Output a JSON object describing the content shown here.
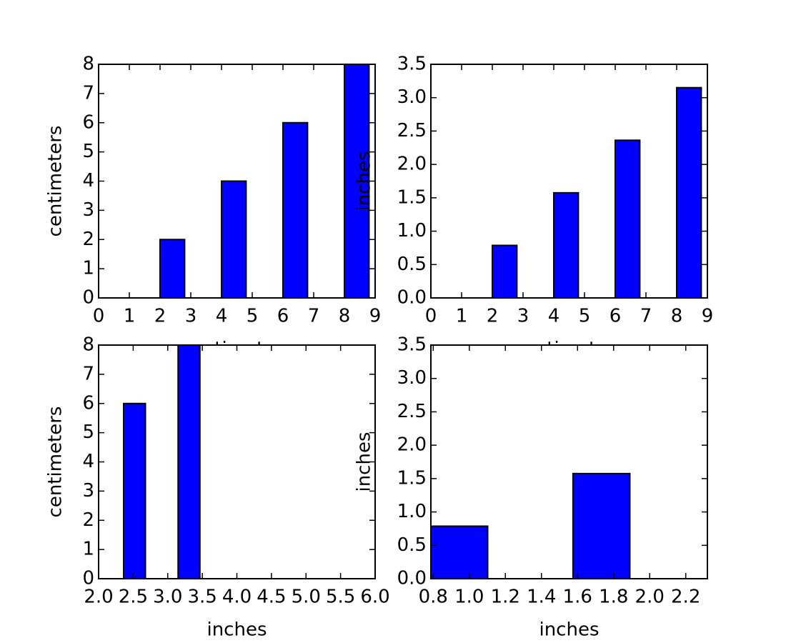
{
  "chart_data": [
    {
      "type": "bar",
      "x": [
        0,
        2,
        4,
        6,
        8
      ],
      "values": [
        0,
        2,
        4,
        6,
        8
      ],
      "xlim": [
        0,
        9
      ],
      "ylim": [
        0,
        8
      ],
      "xticks": [
        0,
        1,
        2,
        3,
        4,
        5,
        6,
        7,
        8,
        9
      ],
      "yticks": [
        0,
        1,
        2,
        3,
        4,
        5,
        6,
        7,
        8
      ],
      "xlabel": "centimeters",
      "ylabel": "centimeters",
      "color": "#0000ff"
    },
    {
      "type": "bar",
      "x": [
        0,
        2,
        4,
        6,
        8
      ],
      "values": [
        0,
        0.787,
        1.575,
        2.362,
        3.15
      ],
      "xlim": [
        0,
        9
      ],
      "ylim": [
        0,
        3.5
      ],
      "xticks": [
        0,
        1,
        2,
        3,
        4,
        5,
        6,
        7,
        8,
        9
      ],
      "yticks": [
        {
          "value": 0,
          "label": "0.0"
        },
        0.5,
        {
          "value": 1,
          "label": "1.0"
        },
        1.5,
        {
          "value": 2,
          "label": "2.0"
        },
        2.5,
        {
          "value": 3,
          "label": "3.0"
        },
        3.5
      ],
      "xlabel": "centimeters",
      "ylabel": "inches",
      "color": "#0000ff"
    },
    {
      "type": "bar",
      "x": [
        2.362,
        3.15
      ],
      "values": [
        6,
        8
      ],
      "xlim": [
        2,
        6
      ],
      "ylim": [
        0,
        8
      ],
      "xticks": [
        {
          "value": 2,
          "label": "2.0"
        },
        2.5,
        {
          "value": 3,
          "label": "3.0"
        },
        3.5,
        {
          "value": 4,
          "label": "4.0"
        },
        4.5,
        {
          "value": 5,
          "label": "5.0"
        },
        5.5,
        {
          "value": 6,
          "label": "6.0"
        }
      ],
      "yticks": [
        0,
        1,
        2,
        3,
        4,
        5,
        6,
        7,
        8
      ],
      "xlabel": "inches",
      "ylabel": "centimeters",
      "color": "#0000ff"
    },
    {
      "type": "bar",
      "x": [
        0.787,
        1.575
      ],
      "values": [
        0.787,
        1.575
      ],
      "xlim": [
        0.787,
        2.32
      ],
      "ylim": [
        0,
        3.5
      ],
      "xticks": [
        0.8,
        {
          "value": 1,
          "label": "1.0"
        },
        1.2,
        1.4,
        1.6,
        1.8,
        {
          "value": 2,
          "label": "2.0"
        },
        2.2
      ],
      "yticks": [
        {
          "value": 0,
          "label": "0.0"
        },
        0.5,
        {
          "value": 1,
          "label": "1.0"
        },
        1.5,
        {
          "value": 2,
          "label": "2.0"
        },
        2.5,
        {
          "value": 3,
          "label": "3.0"
        },
        3.5
      ],
      "xlabel": "inches",
      "ylabel": "inches",
      "color": "#0000ff"
    }
  ]
}
